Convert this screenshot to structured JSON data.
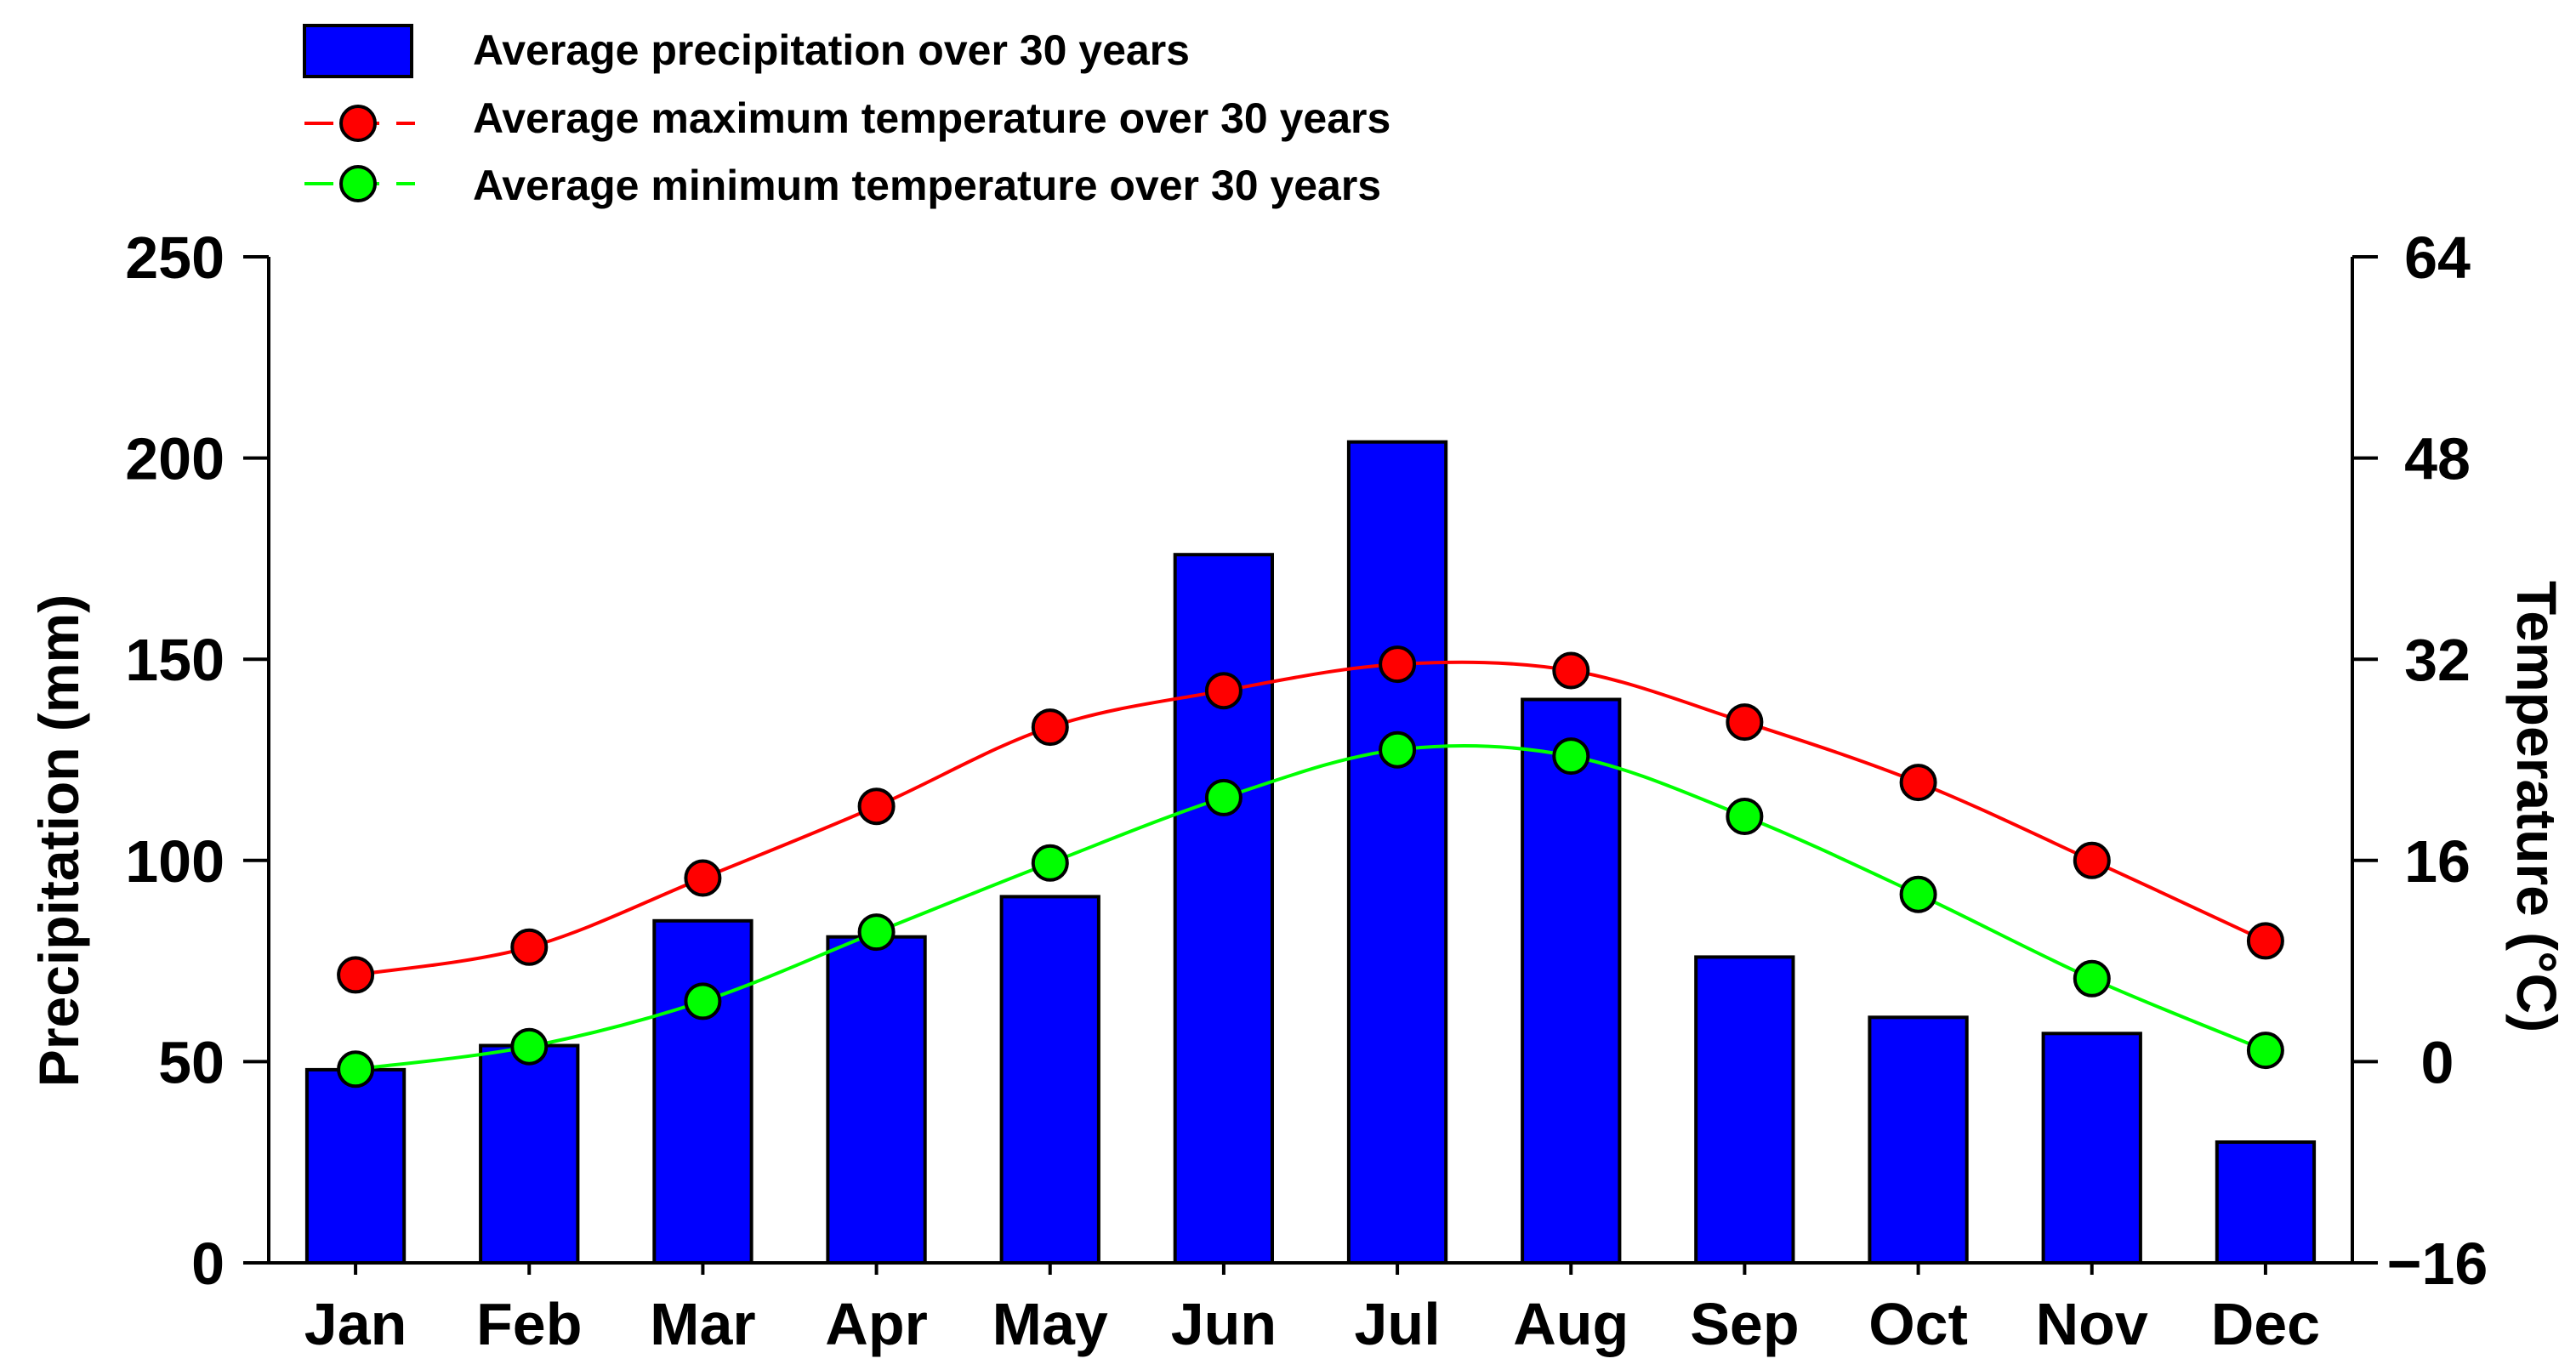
{
  "chart_data": {
    "type": "bar",
    "categories": [
      "Jan",
      "Feb",
      "Mar",
      "Apr",
      "May",
      "Jun",
      "Jul",
      "Aug",
      "Sep",
      "Oct",
      "Nov",
      "Dec"
    ],
    "series": [
      {
        "name": "Average precipitation over 30 years",
        "kind": "bar",
        "axis": "left",
        "color": "#0000FF",
        "values": [
          48,
          54,
          85,
          81,
          91,
          176,
          204,
          140,
          76,
          61,
          57,
          30
        ]
      },
      {
        "name": "Average maximum temperature over 30 years",
        "kind": "line",
        "axis": "right",
        "line_color": "#FF0000",
        "marker_color": "#FF0000",
        "values": [
          6.9,
          9.1,
          14.6,
          20.3,
          26.6,
          29.5,
          31.6,
          31.1,
          27.0,
          22.2,
          16.0,
          9.6
        ]
      },
      {
        "name": "Average minimum temperature over 30 years",
        "kind": "line",
        "axis": "right",
        "line_color": "#00FF00",
        "marker_color": "#00FF00",
        "values": [
          -0.6,
          1.2,
          4.8,
          10.3,
          15.8,
          21.0,
          24.8,
          24.3,
          19.5,
          13.3,
          6.6,
          0.9
        ]
      }
    ],
    "left_axis": {
      "label": "Precipitation (mm)",
      "min": 0,
      "max": 250,
      "ticks": [
        0,
        50,
        100,
        150,
        200,
        250
      ],
      "tick_labels": [
        "0",
        "50",
        "100",
        "150",
        "200",
        "250"
      ]
    },
    "right_axis": {
      "label": "Temperature (°C)",
      "min": -16,
      "max": 64,
      "ticks": [
        -16,
        0,
        16,
        32,
        48,
        64
      ],
      "tick_labels": [
        "−16",
        "0",
        "16",
        "32",
        "48",
        "64"
      ]
    },
    "legend": {
      "position": "top-left",
      "entries": [
        "Average precipitation over 30 years",
        "Average maximum temperature over 30 years",
        "Average minimum temperature over 30 years"
      ]
    },
    "grid": false
  }
}
